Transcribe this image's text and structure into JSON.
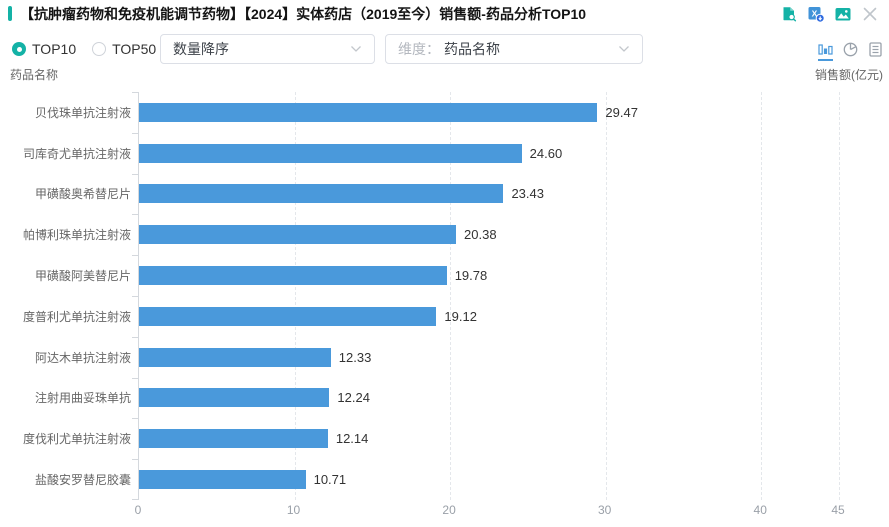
{
  "header": {
    "title": "【抗肿瘤药物和免疫机能调节药物】【2024】实体药店（2019至今）销售额-药品分析TOP10",
    "icons": [
      "file-search-icon",
      "excel-export-icon",
      "image-export-icon",
      "close-icon"
    ]
  },
  "toolbar": {
    "top_filters": [
      {
        "label": "TOP10",
        "selected": true
      },
      {
        "label": "TOP50",
        "selected": false
      }
    ],
    "sort_select": {
      "value": "数量降序"
    },
    "dimension_select": {
      "label": "维度：",
      "value": "药品名称"
    },
    "view_switch": [
      {
        "icon": "bar-chart-icon",
        "active": true
      },
      {
        "icon": "pie-chart-icon",
        "active": false
      },
      {
        "icon": "list-view-icon",
        "active": false
      }
    ]
  },
  "colors": {
    "accent": "#14b2a6",
    "bar": "#4a99db"
  },
  "chart_data": {
    "type": "bar",
    "orientation": "horizontal",
    "title": "销售额-药品分析TOP10",
    "xlabel": "销售额(亿元)",
    "ylabel": "药品名称",
    "categories": [
      "贝伐珠单抗注射液",
      "司库奇尤单抗注射液",
      "甲磺酸奥希替尼片",
      "帕博利珠单抗注射液",
      "甲磺酸阿美替尼片",
      "度普利尤单抗注射液",
      "阿达木单抗注射液",
      "注射用曲妥珠单抗",
      "度伐利尤单抗注射液",
      "盐酸安罗替尼胶囊"
    ],
    "values": [
      29.47,
      24.6,
      23.43,
      20.38,
      19.78,
      19.12,
      12.33,
      12.24,
      12.14,
      10.71
    ],
    "xlim": [
      0,
      45
    ],
    "xticks": [
      0,
      10,
      20,
      30,
      40,
      45
    ],
    "grid": true,
    "legend": "none"
  }
}
